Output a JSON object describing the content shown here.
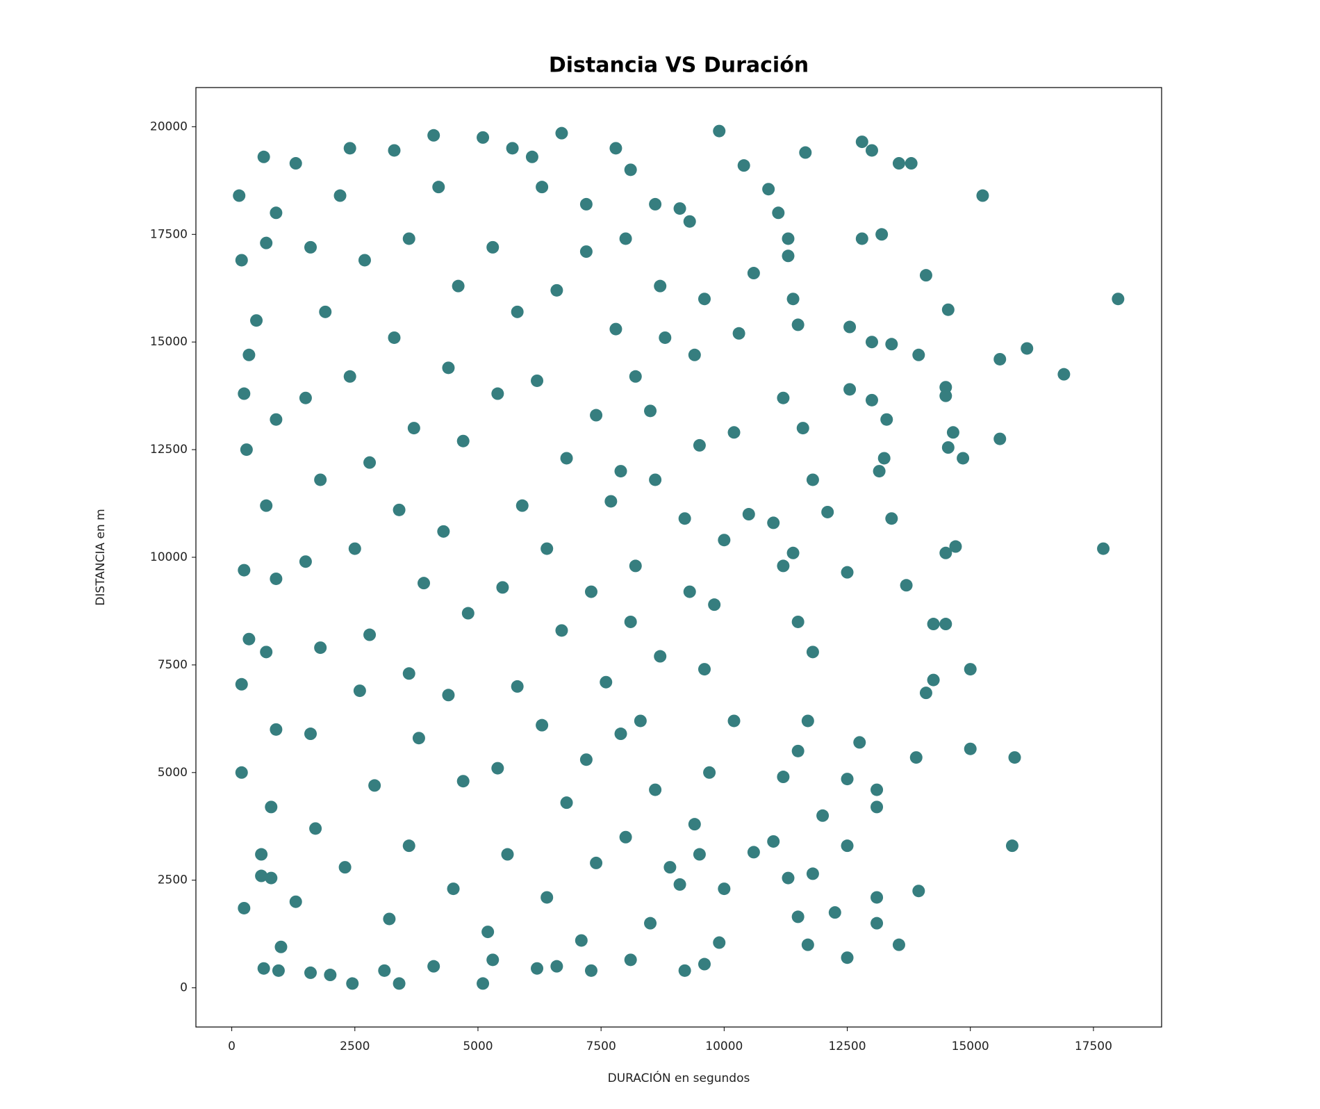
{
  "chart_data": {
    "type": "scatter",
    "title": "Distancia VS Duración",
    "x_label": "DURACIÓN en segundos",
    "y_label": "DISTANCIA en m",
    "color": "#367e7f",
    "x": [
      18000,
      17700,
      16900,
      16150,
      15600,
      15250,
      15600,
      15900,
      15850,
      15000,
      15000,
      14850,
      14700,
      14500,
      14550,
      14650,
      14500,
      14500,
      14550,
      14100,
      13950,
      13550,
      13800,
      12800,
      13000,
      13550,
      13950,
      14100,
      14250,
      13900,
      14250,
      14500,
      13700,
      13400,
      13150,
      13250,
      13300,
      13000,
      13400,
      13000,
      13200,
      12800,
      12550,
      12550,
      12500,
      12100,
      12500,
      12500,
      12500,
      13100,
      13100,
      12750,
      13100,
      13100,
      11500,
      11700,
      12250,
      11300,
      11650,
      10900,
      9900,
      10400,
      9300,
      150,
      200,
      250,
      300,
      350,
      250,
      350,
      200,
      200,
      250,
      650,
      950,
      1000,
      600,
      800,
      1600,
      2000,
      2450,
      3400,
      3100,
      4100,
      5100,
      5300,
      6200,
      6600,
      7300,
      8100,
      9200,
      9600,
      9900,
      10000,
      9500,
      10600,
      11000,
      11300,
      11800,
      12000,
      11200,
      11500,
      11700,
      11800,
      11500,
      11200,
      11400,
      11000,
      11800,
      11600,
      11200,
      11500,
      11400,
      11300,
      11100,
      10600,
      10300,
      10200,
      10500,
      10000,
      9800,
      9600,
      10200,
      9700,
      9400,
      8900,
      8600,
      8300,
      8700,
      8200,
      8600,
      8500,
      8800,
      8700,
      8600,
      8100,
      7800,
      7200,
      6700,
      6100,
      5700,
      5100,
      4100,
      3300,
      2400,
      1300,
      650,
      900,
      700,
      500,
      900,
      700,
      900,
      700,
      900,
      800,
      600,
      1300,
      1700,
      1600,
      1800,
      1500,
      1800,
      1500,
      1900,
      1600,
      2200,
      2700,
      2400,
      2800,
      2500,
      2800,
      2600,
      2900,
      2300,
      3200,
      3600,
      3800,
      3600,
      3900,
      3400,
      3700,
      3300,
      3600,
      4200,
      4600,
      4400,
      4700,
      4300,
      4800,
      4400,
      4700,
      4500,
      5200,
      5600,
      5400,
      5800,
      5500,
      5900,
      5400,
      5800,
      5300,
      6300,
      6600,
      6200,
      6800,
      6400,
      6700,
      6300,
      6800,
      6400,
      7100,
      7400,
      7200,
      7600,
      7300,
      7700,
      7400,
      7800,
      7200,
      8000,
      8200,
      7900,
      8100,
      7900,
      8000,
      8500,
      9100,
      9300,
      9200,
      9500,
      9400,
      9600,
      9100
    ],
    "values": [
      16000,
      10200,
      14250,
      14850,
      14600,
      18400,
      12750,
      5350,
      3300,
      7400,
      5550,
      12300,
      10250,
      10100,
      12550,
      12900,
      13950,
      13750,
      15750,
      16550,
      14700,
      19150,
      19150,
      19650,
      19450,
      1000,
      2250,
      6850,
      7150,
      5350,
      8450,
      8450,
      9350,
      10900,
      12000,
      12300,
      13200,
      13650,
      14950,
      15000,
      17500,
      17400,
      15350,
      13900,
      9650,
      11050,
      4850,
      3300,
      700,
      1500,
      2100,
      5700,
      4600,
      4200,
      1650,
      1000,
      1750,
      17400,
      19400,
      18550,
      19900,
      19100,
      17800,
      18400,
      16900,
      13800,
      12500,
      14700,
      9700,
      8100,
      7050,
      5000,
      1850,
      450,
      400,
      950,
      2600,
      2550,
      350,
      300,
      100,
      100,
      400,
      500,
      100,
      650,
      450,
      500,
      400,
      650,
      400,
      550,
      1050,
      2300,
      3100,
      3150,
      3400,
      2550,
      2650,
      4000,
      4900,
      5500,
      6200,
      7800,
      8500,
      9800,
      10100,
      10800,
      11800,
      13000,
      13700,
      15400,
      16000,
      17000,
      18000,
      16600,
      15200,
      12900,
      11000,
      10400,
      8900,
      7400,
      6200,
      5000,
      3800,
      2800,
      4600,
      6200,
      7700,
      9800,
      11800,
      13400,
      15100,
      16300,
      18200,
      19000,
      19500,
      18200,
      19850,
      19300,
      19500,
      19750,
      19800,
      19450,
      19500,
      19150,
      19300,
      18000,
      17300,
      15500,
      13200,
      11200,
      9500,
      7800,
      6000,
      4200,
      3100,
      2000,
      3700,
      5900,
      7900,
      9900,
      11800,
      13700,
      15700,
      17200,
      18400,
      16900,
      14200,
      12200,
      10200,
      8200,
      6900,
      4700,
      2800,
      1600,
      3300,
      5800,
      7300,
      9400,
      11100,
      13000,
      15100,
      17400,
      18600,
      16300,
      14400,
      12700,
      10600,
      8700,
      6800,
      4800,
      2300,
      1300,
      3100,
      5100,
      7000,
      9300,
      11200,
      13800,
      15700,
      17200,
      18600,
      16200,
      14100,
      12300,
      10200,
      8300,
      6100,
      4300,
      2100,
      1100,
      2900,
      5300,
      7100,
      9200,
      11300,
      13300,
      15300,
      17100,
      17400,
      14200,
      12000,
      8500,
      5900,
      3500,
      1500,
      2400,
      9200,
      10900,
      12600,
      14700,
      16000,
      18100
    ],
    "xlim": [
      -728,
      18884
    ],
    "ylim": [
      -910,
      20910
    ],
    "xticks": [
      0,
      2500,
      5000,
      7500,
      10000,
      12500,
      15000,
      17500
    ],
    "yticks": [
      0,
      2500,
      5000,
      7500,
      10000,
      12500,
      15000,
      17500,
      20000
    ],
    "grid": false
  }
}
